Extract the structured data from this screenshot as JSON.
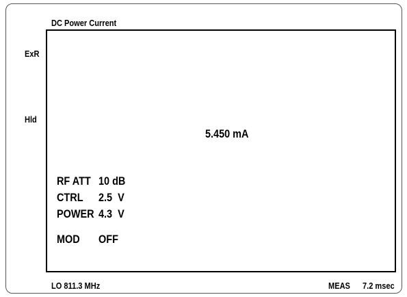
{
  "header": {
    "title": "DC Power Current"
  },
  "indicators": [
    "ExR",
    "Hld"
  ],
  "reading": "5.450 mA",
  "settings": [
    {
      "label": "RF ATT",
      "value": "10 dB"
    },
    {
      "label": "CTRL",
      "value": "2.5  V"
    },
    {
      "label": "POWER",
      "value": "4.3  V"
    },
    {
      "label": "MOD",
      "value": "OFF"
    }
  ],
  "footer": {
    "lo": "LO 811.3 MHz",
    "meas_label": "MEAS",
    "meas_value": "7.2 msec"
  }
}
